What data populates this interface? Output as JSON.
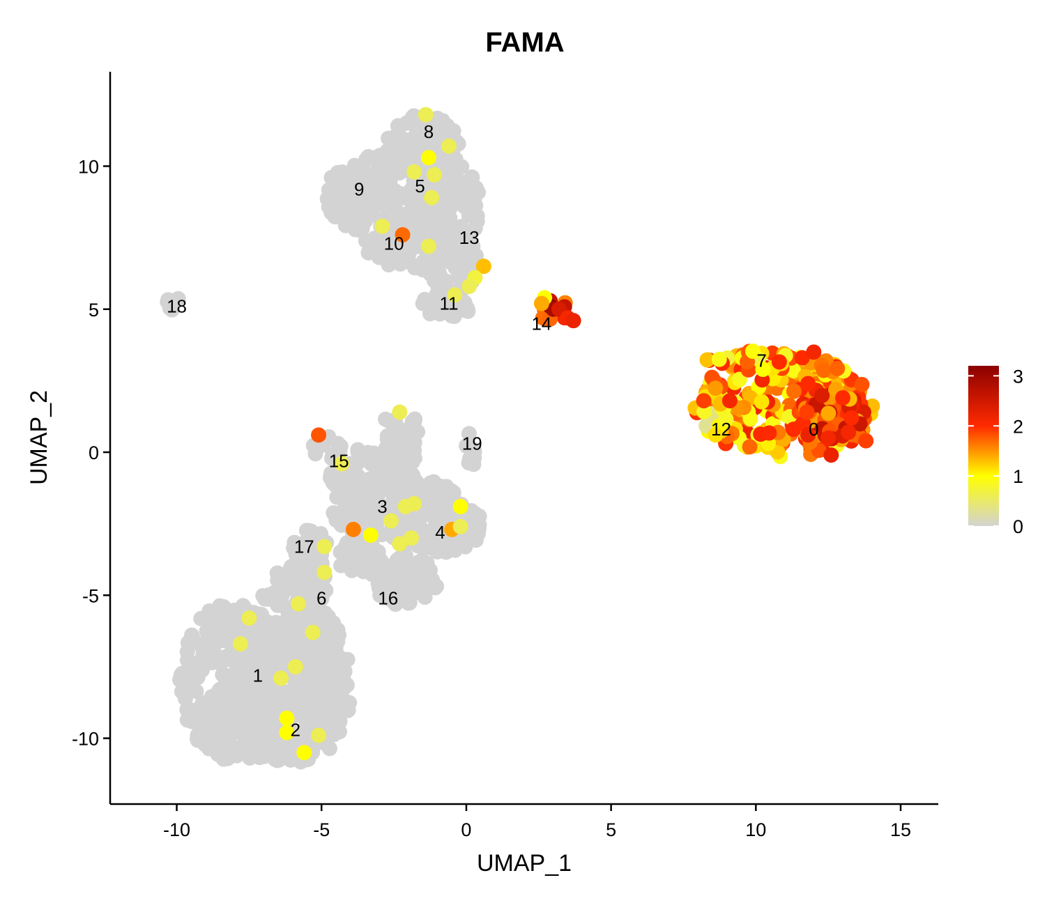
{
  "chart_data": {
    "type": "scatter",
    "title": "FAMA",
    "xlabel": "UMAP_1",
    "ylabel": "UMAP_2",
    "xlim": [
      -12.3,
      16.3
    ],
    "ylim": [
      -12.3,
      13.3
    ],
    "xticks": [
      -10,
      -5,
      0,
      5,
      10,
      15
    ],
    "yticks": [
      -10,
      -5,
      0,
      5,
      10
    ],
    "xtick_labels": [
      "-10",
      "-5",
      "0",
      "5",
      "10",
      "15"
    ],
    "ytick_labels": [
      "-10",
      "-5",
      "0",
      "5",
      "10"
    ],
    "grid": false,
    "legend_position": "right",
    "color_scale": {
      "min": 0,
      "max": 3.2,
      "stops": [
        {
          "value": 0,
          "color": "#d3d3d3"
        },
        {
          "value": 1,
          "color": "#ffff00"
        },
        {
          "value": 2,
          "color": "#ff2a00"
        },
        {
          "value": 3.2,
          "color": "#8b0000"
        }
      ],
      "ticks": [
        0,
        1,
        2,
        3
      ],
      "tick_labels": [
        "0",
        "1",
        "2",
        "3"
      ]
    },
    "clusters": [
      {
        "label": "0",
        "x": 12.0,
        "y": 0.8
      },
      {
        "label": "1",
        "x": -7.2,
        "y": -7.8
      },
      {
        "label": "2",
        "x": -5.9,
        "y": -9.7
      },
      {
        "label": "3",
        "x": -2.9,
        "y": -1.9
      },
      {
        "label": "4",
        "x": -0.9,
        "y": -2.8
      },
      {
        "label": "5",
        "x": -1.6,
        "y": 9.3
      },
      {
        "label": "6",
        "x": -5.0,
        "y": -5.1
      },
      {
        "label": "7",
        "x": 10.2,
        "y": 3.2
      },
      {
        "label": "8",
        "x": -1.3,
        "y": 11.2
      },
      {
        "label": "9",
        "x": -3.7,
        "y": 9.2
      },
      {
        "label": "10",
        "x": -2.5,
        "y": 7.3
      },
      {
        "label": "11",
        "x": -0.6,
        "y": 5.2
      },
      {
        "label": "12",
        "x": 8.8,
        "y": 0.8
      },
      {
        "label": "13",
        "x": 0.1,
        "y": 7.5
      },
      {
        "label": "14",
        "x": 2.6,
        "y": 4.5
      },
      {
        "label": "15",
        "x": -4.4,
        "y": -0.3
      },
      {
        "label": "16",
        "x": -2.7,
        "y": -5.1
      },
      {
        "label": "17",
        "x": -5.6,
        "y": -3.3
      },
      {
        "label": "18",
        "x": -10.0,
        "y": 5.1
      },
      {
        "label": "19",
        "x": 0.2,
        "y": 0.3
      }
    ],
    "base_regions": [
      {
        "cx": -8.0,
        "cy": -8.0,
        "rx": 1.9,
        "ry": 2.8
      },
      {
        "cx": -6.0,
        "cy": -8.6,
        "rx": 2.0,
        "ry": 2.3
      },
      {
        "cx": -6.4,
        "cy": -6.2,
        "rx": 1.8,
        "ry": 1.3
      },
      {
        "cx": -5.0,
        "cy": -7.2,
        "rx": 1.0,
        "ry": 1.6
      },
      {
        "cx": -6.2,
        "cy": -10.3,
        "rx": 1.6,
        "ry": 0.5
      },
      {
        "cx": -5.7,
        "cy": -4.6,
        "rx": 0.9,
        "ry": 1.1
      },
      {
        "cx": -5.4,
        "cy": -3.4,
        "rx": 0.6,
        "ry": 0.8
      },
      {
        "cx": -2.3,
        "cy": -2.0,
        "rx": 2.3,
        "ry": 1.3
      },
      {
        "cx": -0.8,
        "cy": -2.6,
        "rx": 1.4,
        "ry": 0.9
      },
      {
        "cx": -2.2,
        "cy": -4.5,
        "rx": 1.2,
        "ry": 0.9
      },
      {
        "cx": -3.7,
        "cy": -0.8,
        "rx": 1.0,
        "ry": 0.9
      },
      {
        "cx": -2.3,
        "cy": 0.5,
        "rx": 0.7,
        "ry": 1.2
      },
      {
        "cx": -4.8,
        "cy": 0.1,
        "rx": 0.5,
        "ry": 0.5
      },
      {
        "cx": -3.7,
        "cy": -3.6,
        "rx": 0.8,
        "ry": 0.7
      },
      {
        "cx": 0.2,
        "cy": 0.1,
        "rx": 0.3,
        "ry": 0.6
      },
      {
        "cx": -10.1,
        "cy": 5.1,
        "rx": 0.35,
        "ry": 0.35
      },
      {
        "cx": -2.9,
        "cy": 9.0,
        "rx": 2.0,
        "ry": 1.4
      },
      {
        "cx": -1.5,
        "cy": 10.6,
        "rx": 1.3,
        "ry": 1.2
      },
      {
        "cx": -0.5,
        "cy": 8.6,
        "rx": 1.0,
        "ry": 1.5
      },
      {
        "cx": -2.3,
        "cy": 7.3,
        "rx": 1.2,
        "ry": 0.8
      },
      {
        "cx": -0.6,
        "cy": 6.6,
        "rx": 1.2,
        "ry": 0.9
      },
      {
        "cx": -0.7,
        "cy": 5.3,
        "rx": 0.9,
        "ry": 0.7
      }
    ],
    "expression_regions": [
      {
        "cx": 11.0,
        "cy": 1.6,
        "rx": 3.1,
        "ry": 1.8,
        "level": 1.5
      },
      {
        "cx": 10.0,
        "cy": 3.2,
        "rx": 2.0,
        "ry": 0.35,
        "level": 1.4
      },
      {
        "cx": 12.6,
        "cy": 1.2,
        "rx": 1.2,
        "ry": 1.1,
        "level": 2.0
      },
      {
        "cx": 8.6,
        "cy": 1.5,
        "rx": 0.4,
        "ry": 1.0,
        "level": 1.0
      },
      {
        "cx": 3.0,
        "cy": 5.0,
        "rx": 0.6,
        "ry": 0.4,
        "level": 2.2
      }
    ],
    "highlight_points": [
      {
        "x": 2.9,
        "y": 5.1,
        "value": 3.1
      },
      {
        "x": 3.0,
        "y": 5.0,
        "value": 2.9
      },
      {
        "x": 3.2,
        "y": 5.0,
        "value": 2.4
      },
      {
        "x": 3.5,
        "y": 4.7,
        "value": 2.1
      },
      {
        "x": 3.7,
        "y": 4.6,
        "value": 2.2
      },
      {
        "x": 2.7,
        "y": 5.4,
        "value": 1.0
      },
      {
        "x": 2.6,
        "y": 5.2,
        "value": 1.4
      },
      {
        "x": 9.1,
        "y": 1.8,
        "value": 2.1
      },
      {
        "x": 12.6,
        "y": -0.1,
        "value": 2.2
      },
      {
        "x": 11.3,
        "y": 0.8,
        "value": 2.0
      },
      {
        "x": 12.5,
        "y": 0.5,
        "value": 2.1
      },
      {
        "x": 13.0,
        "y": 1.9,
        "value": 2.0
      },
      {
        "x": 11.6,
        "y": 3.3,
        "value": 2.0
      },
      {
        "x": 12.0,
        "y": 3.5,
        "value": 2.1
      },
      {
        "x": 13.3,
        "y": 1.2,
        "value": 2.0
      },
      {
        "x": 8.2,
        "y": 1.8,
        "value": 1.9
      },
      {
        "x": 11.8,
        "y": 0.6,
        "value": 2.2
      },
      {
        "x": 13.8,
        "y": 0.4,
        "value": 1.9
      },
      {
        "x": 13.2,
        "y": 0.7,
        "value": 2.1
      },
      {
        "x": 11.8,
        "y": 2.4,
        "value": 2.0
      },
      {
        "x": -2.2,
        "y": 7.6,
        "value": 1.7
      },
      {
        "x": 0.6,
        "y": 6.5,
        "value": 1.3
      },
      {
        "x": -1.3,
        "y": 10.3,
        "value": 1.0
      },
      {
        "x": -1.4,
        "y": 11.8,
        "value": 0.6
      },
      {
        "x": -0.6,
        "y": 10.7,
        "value": 0.6
      },
      {
        "x": -1.8,
        "y": 9.8,
        "value": 0.6
      },
      {
        "x": -1.1,
        "y": 9.7,
        "value": 0.6
      },
      {
        "x": -1.2,
        "y": 8.9,
        "value": 0.6
      },
      {
        "x": -2.9,
        "y": 7.9,
        "value": 0.6
      },
      {
        "x": -1.3,
        "y": 7.2,
        "value": 0.6
      },
      {
        "x": 0.3,
        "y": 6.1,
        "value": 0.7
      },
      {
        "x": 0.1,
        "y": 5.8,
        "value": 0.6
      },
      {
        "x": -0.4,
        "y": 5.5,
        "value": 0.6
      },
      {
        "x": -5.1,
        "y": 0.6,
        "value": 1.8
      },
      {
        "x": -3.9,
        "y": -2.7,
        "value": 1.6
      },
      {
        "x": -0.5,
        "y": -2.7,
        "value": 1.4
      },
      {
        "x": -3.3,
        "y": -2.9,
        "value": 1.0
      },
      {
        "x": -0.2,
        "y": -1.9,
        "value": 1.0
      },
      {
        "x": -2.3,
        "y": 1.4,
        "value": 0.6
      },
      {
        "x": -4.3,
        "y": -0.4,
        "value": 0.6
      },
      {
        "x": -2.1,
        "y": -1.9,
        "value": 0.6
      },
      {
        "x": -1.8,
        "y": -1.8,
        "value": 0.6
      },
      {
        "x": -2.6,
        "y": -2.4,
        "value": 0.6
      },
      {
        "x": -1.9,
        "y": -3.0,
        "value": 0.6
      },
      {
        "x": -2.3,
        "y": -3.2,
        "value": 0.6
      },
      {
        "x": -0.2,
        "y": -2.6,
        "value": 0.6
      },
      {
        "x": -4.9,
        "y": -3.3,
        "value": 0.6
      },
      {
        "x": -4.9,
        "y": -4.2,
        "value": 0.6
      },
      {
        "x": -5.8,
        "y": -5.3,
        "value": 0.6
      },
      {
        "x": -5.3,
        "y": -6.3,
        "value": 0.6
      },
      {
        "x": -7.5,
        "y": -5.8,
        "value": 0.6
      },
      {
        "x": -7.8,
        "y": -6.7,
        "value": 0.6
      },
      {
        "x": -5.9,
        "y": -7.5,
        "value": 0.6
      },
      {
        "x": -6.4,
        "y": -7.9,
        "value": 0.6
      },
      {
        "x": -6.2,
        "y": -9.3,
        "value": 1.0
      },
      {
        "x": -6.2,
        "y": -9.8,
        "value": 1.0
      },
      {
        "x": -5.6,
        "y": -10.5,
        "value": 1.0
      },
      {
        "x": -5.1,
        "y": -9.9,
        "value": 0.6
      }
    ]
  }
}
